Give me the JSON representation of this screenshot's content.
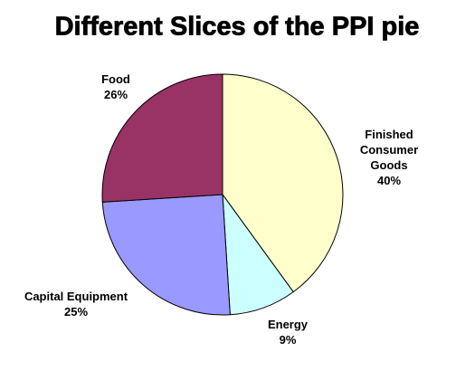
{
  "chart_data": {
    "type": "pie",
    "title": "Different Slices of the PPI pie",
    "categories": [
      "Finished Consumer Goods",
      "Energy",
      "Capital Equipment",
      "Food"
    ],
    "values": [
      40,
      9,
      25,
      26
    ],
    "value_labels": [
      "40%",
      "9%",
      "25%",
      "26%"
    ],
    "colors": [
      "#ffffcc",
      "#ccffff",
      "#9999ff",
      "#993366"
    ]
  }
}
